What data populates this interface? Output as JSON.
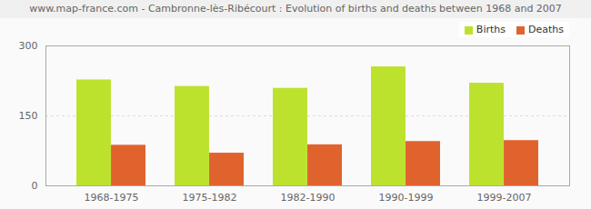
{
  "chart_data": {
    "type": "bar",
    "title": "www.map-france.com - Cambronne-lès-Ribécourt : Evolution of births and deaths between 1968 and 2007",
    "categories": [
      "1968-1975",
      "1975-1982",
      "1982-1990",
      "1990-1999",
      "1999-2007"
    ],
    "series": [
      {
        "name": "Births",
        "color": "#bce22e",
        "values": [
          227,
          213,
          209,
          255,
          220
        ]
      },
      {
        "name": "Deaths",
        "color": "#e0632e",
        "values": [
          87,
          70,
          88,
          95,
          97
        ]
      }
    ],
    "ylim": [
      0,
      300
    ],
    "yticks": [
      0,
      150,
      300
    ],
    "grid": true,
    "legend": "top-right"
  }
}
